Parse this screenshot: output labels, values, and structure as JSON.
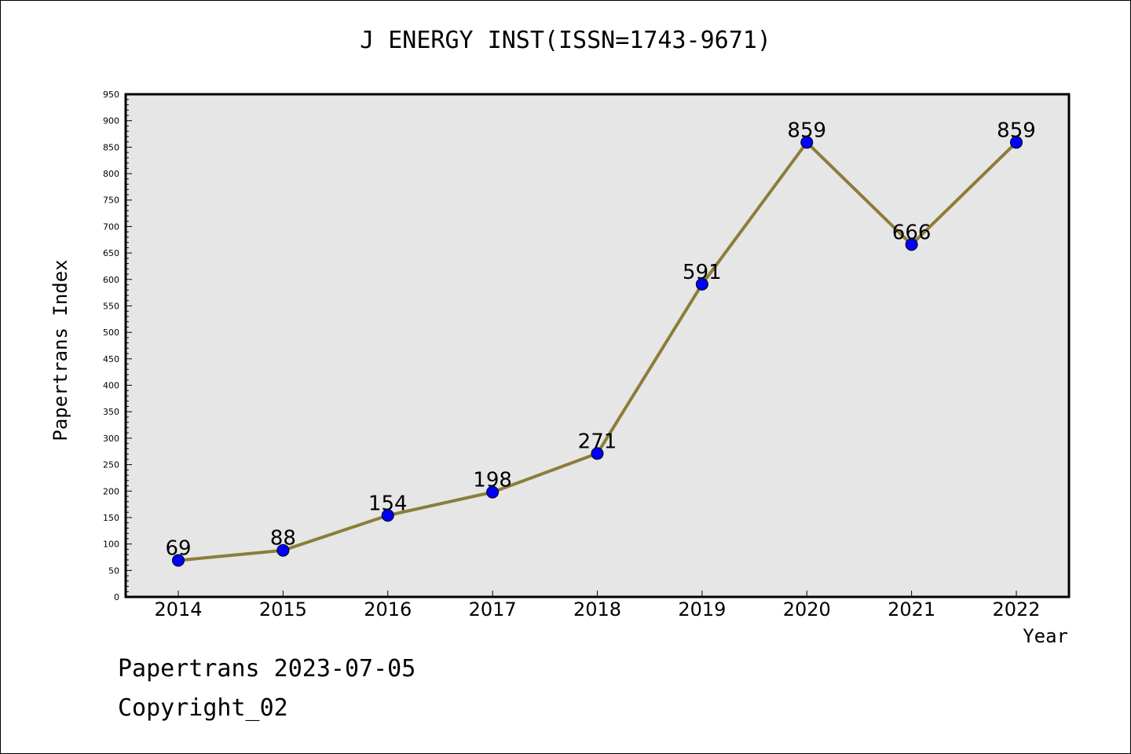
{
  "chart_data": {
    "type": "line",
    "title": "J ENERGY INST(ISSN=1743-9671)",
    "xlabel": "Year",
    "ylabel": "Papertrans Index",
    "categories": [
      "2014",
      "2015",
      "2016",
      "2017",
      "2018",
      "2019",
      "2020",
      "2021",
      "2022"
    ],
    "series": [
      {
        "values": [
          69,
          88,
          154,
          198,
          271,
          591,
          859,
          666,
          859
        ]
      }
    ],
    "data_labels": [
      "69",
      "88",
      "154",
      "198",
      "271",
      "591",
      "859",
      "666",
      "859"
    ],
    "ylim": [
      0,
      950
    ],
    "yticks": [
      0,
      50,
      100,
      150,
      200,
      250,
      300,
      350,
      400,
      450,
      500,
      550,
      600,
      650,
      700,
      750,
      800,
      850,
      900,
      950
    ],
    "grid": false,
    "line_color": "#8b7d3a",
    "marker_color": "#0000ff",
    "plot_background": "#e6e6e6"
  },
  "footer": {
    "line1": "Papertrans 2023-07-05",
    "line2": "Copyright_02"
  }
}
